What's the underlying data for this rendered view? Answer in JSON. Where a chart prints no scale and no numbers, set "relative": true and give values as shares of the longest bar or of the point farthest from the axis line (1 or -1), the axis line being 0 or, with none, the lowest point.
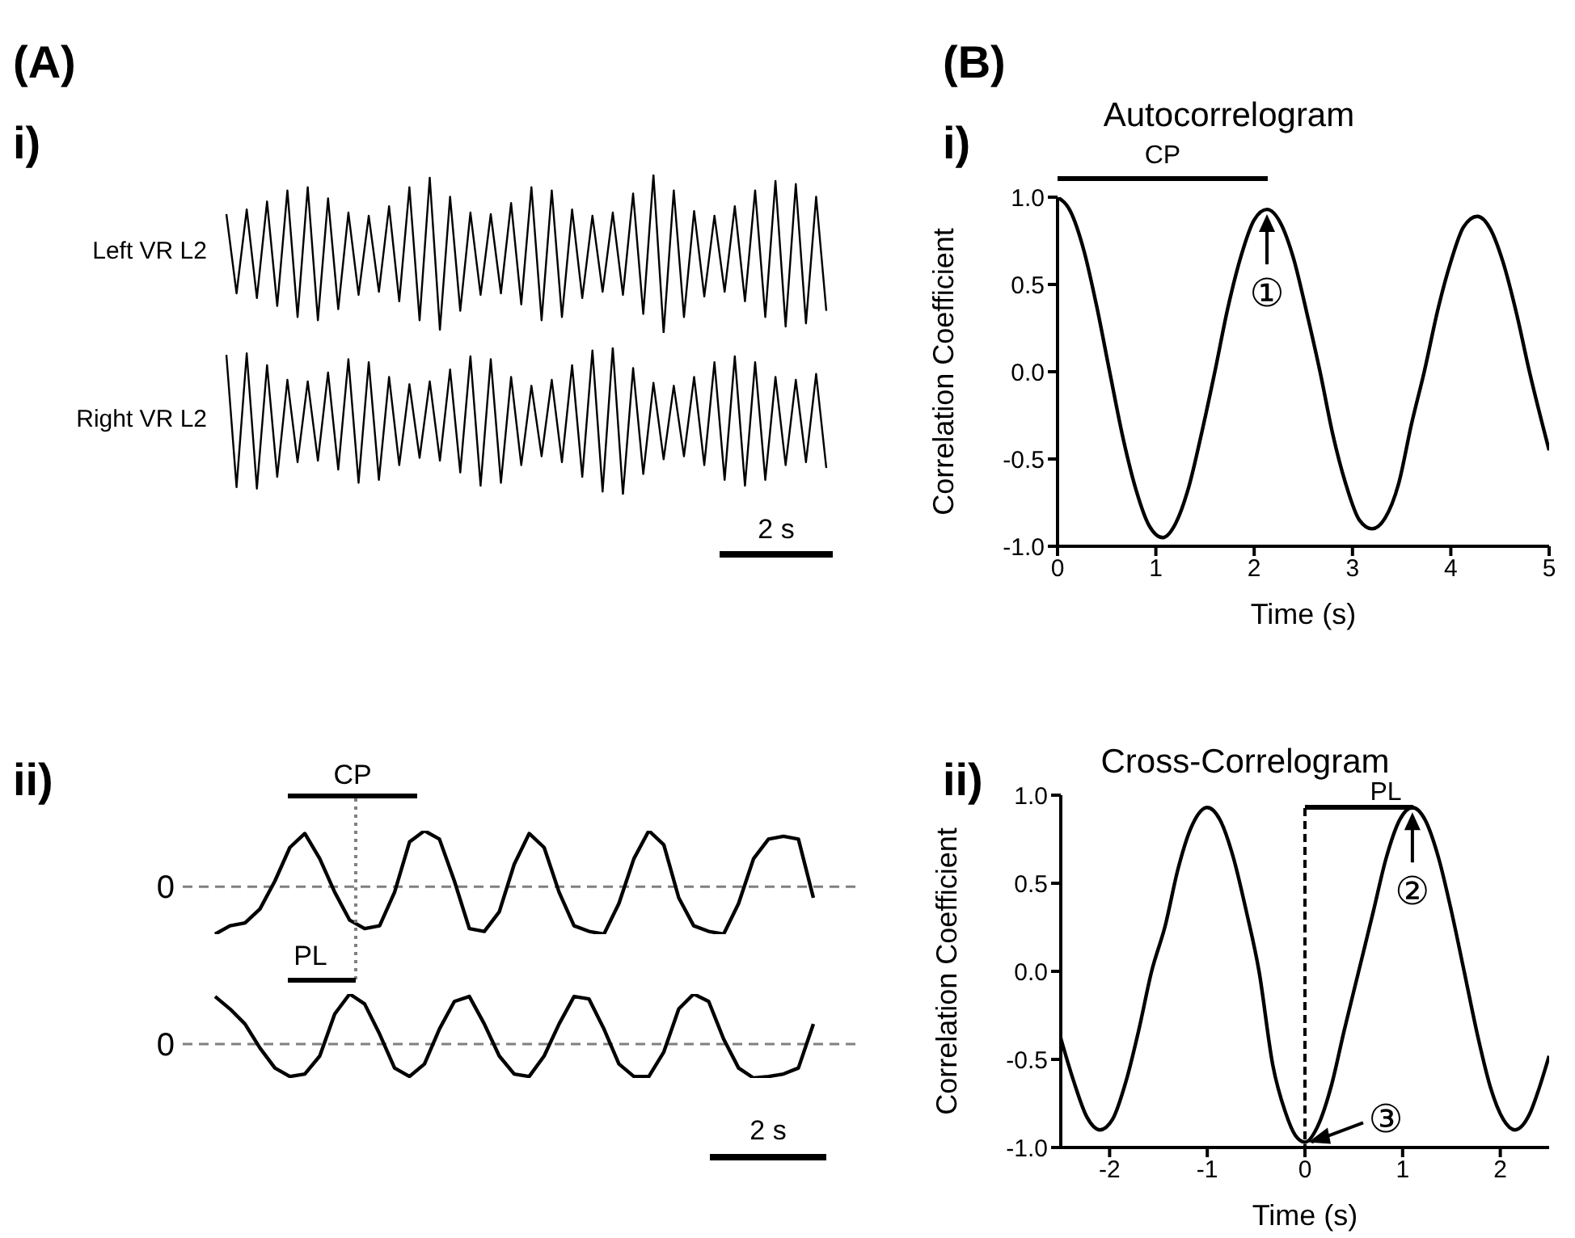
{
  "chart_data": [
    {
      "type": "line",
      "relative": true,
      "marker": "none",
      "annotations": [
        "(A)",
        "i)"
      ],
      "categories": [
        null,
        null,
        null,
        null,
        null,
        null,
        null,
        null,
        null,
        null,
        null,
        null,
        null,
        null,
        null,
        null,
        null,
        null,
        null,
        null,
        null,
        null,
        null,
        null,
        null,
        null,
        null,
        null,
        null,
        null,
        null,
        null,
        null,
        null,
        null,
        null,
        null,
        null,
        null,
        null,
        null,
        null,
        null,
        null,
        null,
        null,
        null,
        null,
        null,
        null,
        null,
        null,
        null,
        null,
        null,
        null,
        null,
        null,
        null,
        null
      ],
      "series": [
        {
          "name": "Left VR L2",
          "color": "#000000",
          "values": [
            0.75,
            0.25,
            0.78,
            0.22,
            0.83,
            0.17,
            0.9,
            0.1,
            0.92,
            0.08,
            0.85,
            0.15,
            0.76,
            0.24,
            0.74,
            0.26,
            0.8,
            0.2,
            0.92,
            0.08,
            0.98,
            0.02,
            0.86,
            0.14,
            0.76,
            0.24,
            0.75,
            0.25,
            0.82,
            0.18,
            0.92,
            0.08,
            0.9,
            0.1,
            0.78,
            0.22,
            0.74,
            0.26,
            0.76,
            0.24,
            0.88,
            0.12,
            1.0,
            0,
            0.9,
            0.1,
            0.77,
            0.23,
            0.74,
            0.26,
            0.8,
            0.2,
            0.9,
            0.1,
            0.96,
            0.04,
            0.94,
            0.06,
            0.86,
            0.14
          ]
        }
      ]
    },
    {
      "type": "line",
      "relative": true,
      "marker": "none",
      "annotations": [
        "2 s"
      ],
      "categories": [
        null,
        null,
        null,
        null,
        null,
        null,
        null,
        null,
        null,
        null,
        null,
        null,
        null,
        null,
        null,
        null,
        null,
        null,
        null,
        null,
        null,
        null,
        null,
        null,
        null,
        null,
        null,
        null,
        null,
        null,
        null,
        null,
        null,
        null,
        null,
        null,
        null,
        null,
        null,
        null,
        null,
        null,
        null,
        null,
        null,
        null,
        null,
        null,
        null,
        null,
        null,
        null,
        null,
        null,
        null,
        null,
        null,
        null,
        null,
        null
      ],
      "series": [
        {
          "name": "Right VR L2",
          "color": "#000000",
          "values": [
            0.95,
            0.05,
            0.96,
            0.04,
            0.88,
            0.12,
            0.78,
            0.22,
            0.77,
            0.23,
            0.83,
            0.17,
            0.92,
            0.08,
            0.9,
            0.1,
            0.8,
            0.2,
            0.75,
            0.25,
            0.77,
            0.23,
            0.85,
            0.15,
            0.94,
            0.06,
            0.92,
            0.08,
            0.8,
            0.2,
            0.74,
            0.26,
            0.78,
            0.22,
            0.88,
            0.12,
            0.98,
            0.02,
            1.0,
            0,
            0.86,
            0.14,
            0.76,
            0.24,
            0.74,
            0.26,
            0.8,
            0.2,
            0.9,
            0.1,
            0.94,
            0.06,
            0.9,
            0.1,
            0.8,
            0.2,
            0.78,
            0.22,
            0.82,
            0.18
          ]
        }
      ]
    },
    {
      "type": "line",
      "relative": true,
      "marker": "none",
      "annotations": [
        "ii)",
        "CP",
        "PL"
      ],
      "ref_lines": [
        {
          "axis": "y",
          "value": 0,
          "label": "0",
          "color": "#808080",
          "line_style": "dashed"
        }
      ],
      "categories": [
        null,
        null,
        null,
        null,
        null,
        null,
        null,
        null,
        null,
        null,
        null,
        null,
        null,
        null,
        null,
        null,
        null,
        null,
        null,
        null,
        null,
        null,
        null,
        null,
        null,
        null,
        null,
        null,
        null,
        null,
        null,
        null,
        null,
        null,
        null,
        null,
        null,
        null,
        null,
        null,
        null
      ],
      "series": [
        {
          "color": "#000000",
          "values": [
            -0.85,
            -0.7,
            -0.65,
            -0.4,
            0.1,
            0.7,
            0.95,
            0.5,
            -0.1,
            -0.6,
            -0.75,
            -0.7,
            -0.1,
            0.8,
            1.0,
            0.85,
            0.1,
            -0.75,
            -0.8,
            -0.45,
            0.4,
            0.95,
            0.7,
            -0.1,
            -0.7,
            -0.8,
            -0.85,
            -0.3,
            0.5,
            1.0,
            0.75,
            -0.2,
            -0.7,
            -0.8,
            -0.85,
            -0.3,
            0.5,
            0.85,
            0.9,
            0.85,
            -0.2
          ]
        }
      ]
    },
    {
      "type": "line",
      "relative": true,
      "marker": "none",
      "annotations": [
        "2 s"
      ],
      "ref_lines": [
        {
          "axis": "y",
          "value": 0,
          "label": "0",
          "color": "#808080",
          "line_style": "dashed"
        }
      ],
      "categories": [
        null,
        null,
        null,
        null,
        null,
        null,
        null,
        null,
        null,
        null,
        null,
        null,
        null,
        null,
        null,
        null,
        null,
        null,
        null,
        null,
        null,
        null,
        null,
        null,
        null,
        null,
        null,
        null,
        null,
        null,
        null,
        null,
        null,
        null,
        null,
        null,
        null,
        null,
        null,
        null,
        null
      ],
      "series": [
        {
          "color": "#000000",
          "values": [
            0.95,
            0.7,
            0.4,
            -0.08,
            -0.48,
            -0.65,
            -0.6,
            -0.24,
            0.6,
            1.0,
            0.8,
            0.2,
            -0.48,
            -0.65,
            -0.4,
            0.3,
            0.85,
            0.95,
            0.4,
            -0.24,
            -0.6,
            -0.65,
            -0.24,
            0.4,
            0.95,
            0.9,
            0.3,
            -0.4,
            -0.65,
            -0.65,
            -0.16,
            0.7,
            1.0,
            0.85,
            0.1,
            -0.48,
            -0.68,
            -0.65,
            -0.6,
            -0.48,
            0.4
          ]
        }
      ]
    },
    {
      "type": "line",
      "title": "Autocorrelogram",
      "xlabel": "Time (s)",
      "ylabel": "Correlation Coefficient",
      "marker": "none",
      "annotations": [
        "(B)",
        "i)",
        "CP",
        {
          "text": "①",
          "x": 2.13,
          "y": 0.93
        }
      ],
      "xlim": [
        0,
        5
      ],
      "xticks": [
        0,
        1,
        2,
        3,
        4,
        5
      ],
      "ylim": [
        -1,
        1
      ],
      "yticks": [
        {
          "value": -1,
          "label": "-1.0"
        },
        {
          "value": -0.5,
          "label": "-0.5"
        },
        {
          "value": 0,
          "label": "0.0"
        },
        {
          "value": 0.5,
          "label": "0.5"
        },
        {
          "value": 1,
          "label": "1.0"
        }
      ],
      "x": [
        0,
        0.13,
        0.27,
        0.4,
        0.53,
        0.67,
        0.8,
        0.93,
        1.07,
        1.2,
        1.33,
        1.47,
        1.6,
        1.73,
        1.87,
        2.0,
        2.13,
        2.27,
        2.4,
        2.53,
        2.67,
        2.8,
        2.93,
        3.07,
        3.2,
        3.33,
        3.47,
        3.6,
        3.73,
        3.87,
        4.0,
        4.13,
        4.27,
        4.4,
        4.53,
        4.67,
        4.8,
        5.0
      ],
      "series": [
        {
          "color": "#000000",
          "values": [
            1.0,
            0.92,
            0.69,
            0.37,
            0.0,
            -0.39,
            -0.68,
            -0.88,
            -0.95,
            -0.87,
            -0.67,
            -0.34,
            0.0,
            0.36,
            0.67,
            0.87,
            0.93,
            0.85,
            0.65,
            0.35,
            0.0,
            -0.36,
            -0.64,
            -0.85,
            -0.9,
            -0.84,
            -0.64,
            -0.3,
            0.0,
            0.36,
            0.63,
            0.83,
            0.89,
            0.82,
            0.63,
            0.33,
            0.0,
            -0.45
          ]
        }
      ]
    },
    {
      "type": "line",
      "title": "Cross-Correlogram",
      "xlabel": "Time (s)",
      "ylabel": "Correlation Coefficient",
      "marker": "none",
      "annotations": [
        "ii)",
        "PL",
        {
          "text": "②",
          "x": 1.1,
          "y": 0.93
        },
        {
          "text": "③",
          "x": 0,
          "y": -0.97
        }
      ],
      "xlim": [
        -2.5,
        2.5
      ],
      "xticks": [
        -2,
        -1,
        0,
        1,
        2
      ],
      "ylim": [
        -1,
        1
      ],
      "yticks": [
        {
          "value": -1,
          "label": "-1.0"
        },
        {
          "value": -0.5,
          "label": "-0.5"
        },
        {
          "value": 0,
          "label": "0.0"
        },
        {
          "value": 0.5,
          "label": "0.5"
        },
        {
          "value": 1,
          "label": "1.0"
        }
      ],
      "x": [
        -2.5,
        -2.37,
        -2.23,
        -2.1,
        -1.97,
        -1.83,
        -1.7,
        -1.57,
        -1.43,
        -1.3,
        -1.17,
        -1.0,
        -0.87,
        -0.73,
        -0.6,
        -0.47,
        -0.33,
        -0.2,
        -0.1,
        0,
        0.13,
        0.27,
        0.4,
        0.55,
        0.7,
        0.83,
        0.97,
        1.1,
        1.23,
        1.37,
        1.5,
        1.63,
        1.77,
        1.9,
        2.03,
        2.15,
        2.3,
        2.4,
        2.5
      ],
      "series": [
        {
          "color": "#000000",
          "values": [
            -0.38,
            -0.62,
            -0.83,
            -0.9,
            -0.84,
            -0.62,
            -0.33,
            0.0,
            0.26,
            0.58,
            0.81,
            0.93,
            0.86,
            0.64,
            0.34,
            0.0,
            -0.53,
            -0.8,
            -0.93,
            -0.97,
            -0.88,
            -0.65,
            -0.34,
            0.0,
            0.34,
            0.64,
            0.86,
            0.93,
            0.86,
            0.64,
            0.34,
            0.0,
            -0.37,
            -0.66,
            -0.84,
            -0.9,
            -0.81,
            -0.66,
            -0.48
          ]
        }
      ]
    }
  ]
}
